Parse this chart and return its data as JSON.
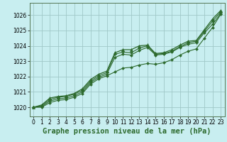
{
  "background_color": "#c8eef0",
  "grid_color": "#a0c8c8",
  "line_color": "#2d6a2d",
  "title": "Graphe pression niveau de la mer (hPa)",
  "tick_fontsize": 5.5,
  "title_fontsize": 7.5,
  "xlim": [
    -0.5,
    23.5
  ],
  "ylim": [
    1019.4,
    1026.8
  ],
  "yticks": [
    1020,
    1021,
    1022,
    1023,
    1024,
    1025,
    1026
  ],
  "xticks": [
    0,
    1,
    2,
    3,
    4,
    5,
    6,
    7,
    8,
    9,
    10,
    11,
    12,
    13,
    14,
    15,
    16,
    17,
    18,
    19,
    20,
    21,
    22,
    23
  ],
  "series": [
    {
      "x": [
        0,
        1,
        2,
        3,
        4,
        5,
        6,
        7,
        8,
        9,
        10,
        11,
        12,
        13,
        14,
        15,
        16,
        17,
        18,
        19,
        20,
        21,
        22,
        23
      ],
      "y": [
        1020.0,
        1020.15,
        1020.6,
        1020.7,
        1020.75,
        1020.9,
        1021.2,
        1021.8,
        1022.15,
        1022.35,
        1023.55,
        1023.75,
        1023.75,
        1024.0,
        1024.05,
        1023.5,
        1023.55,
        1023.75,
        1024.05,
        1024.3,
        1024.35,
        1025.05,
        1025.75,
        1026.3
      ],
      "marker": "^",
      "markersize": 3.0,
      "linewidth": 0.9
    },
    {
      "x": [
        0,
        1,
        2,
        3,
        4,
        5,
        6,
        7,
        8,
        9,
        10,
        11,
        12,
        13,
        14,
        15,
        16,
        17,
        18,
        19,
        20,
        21,
        22,
        23
      ],
      "y": [
        1020.0,
        1020.1,
        1020.5,
        1020.65,
        1020.7,
        1020.85,
        1021.1,
        1021.7,
        1022.05,
        1022.25,
        1023.45,
        1023.6,
        1023.55,
        1023.85,
        1024.0,
        1023.45,
        1023.5,
        1023.65,
        1023.95,
        1024.2,
        1024.3,
        1024.95,
        1025.6,
        1026.2
      ],
      "marker": "P",
      "markersize": 2.5,
      "linewidth": 0.8
    },
    {
      "x": [
        0,
        1,
        2,
        3,
        4,
        5,
        6,
        7,
        8,
        9,
        10,
        11,
        12,
        13,
        14,
        15,
        16,
        17,
        18,
        19,
        20,
        21,
        22,
        23
      ],
      "y": [
        1020.0,
        1020.05,
        1020.4,
        1020.55,
        1020.6,
        1020.75,
        1021.0,
        1021.6,
        1021.95,
        1022.15,
        1023.25,
        1023.45,
        1023.4,
        1023.7,
        1023.9,
        1023.4,
        1023.45,
        1023.6,
        1023.9,
        1024.1,
        1024.2,
        1024.85,
        1025.4,
        1026.1
      ],
      "marker": "D",
      "markersize": 2.0,
      "linewidth": 0.8
    },
    {
      "x": [
        0,
        1,
        2,
        3,
        4,
        5,
        6,
        7,
        8,
        9,
        10,
        11,
        12,
        13,
        14,
        15,
        16,
        17,
        18,
        19,
        20,
        21,
        22,
        23
      ],
      "y": [
        1020.0,
        1020.0,
        1020.3,
        1020.45,
        1020.5,
        1020.65,
        1020.9,
        1021.5,
        1021.85,
        1022.05,
        1022.3,
        1022.55,
        1022.6,
        1022.75,
        1022.85,
        1022.8,
        1022.9,
        1023.1,
        1023.4,
        1023.65,
        1023.8,
        1024.5,
        1025.2,
        1026.05
      ],
      "marker": "D",
      "markersize": 2.0,
      "linewidth": 0.8
    }
  ]
}
